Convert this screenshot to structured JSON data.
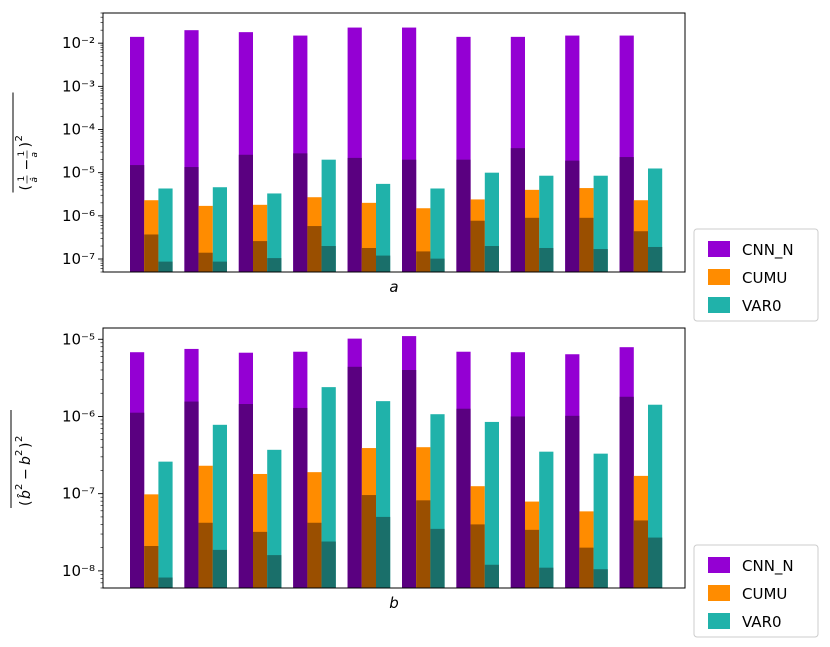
{
  "colors": {
    "cnn_n": "#9400d3",
    "cumu": "#ff8c00",
    "var0": "#20b2aa",
    "dark_cnn": "#5a0080",
    "dark_cumu": "#9a4f00",
    "dark_var0": "#1a6f6a"
  },
  "chart_data": [
    {
      "type": "bar",
      "scale": "log",
      "xlabel": "a",
      "ylabel": "$\\overline{(\\frac{1}{\\hat{a}}-\\frac{1}{a})^2}$",
      "ylim": [
        5e-08,
        0.05
      ],
      "yticks": [
        {
          "v": 1e-07,
          "label": "10⁻⁷"
        },
        {
          "v": 1e-06,
          "label": "10⁻⁶"
        },
        {
          "v": 1e-05,
          "label": "10⁻⁵"
        },
        {
          "v": 0.0001,
          "label": "10⁻⁴"
        },
        {
          "v": 0.001,
          "label": "10⁻³"
        },
        {
          "v": 0.01,
          "label": "10⁻²"
        }
      ],
      "legend": [
        "CNN_N",
        "CUMU",
        "VAR0"
      ],
      "legend_position": "outside-right-bottom",
      "series": [
        {
          "name": "CNN_N",
          "values": [
            0.014,
            0.02,
            0.018,
            0.015,
            0.023,
            0.023,
            0.014,
            0.014,
            0.015,
            0.015
          ]
        },
        {
          "name": "CUMU",
          "values": [
            2.3e-06,
            1.7e-06,
            1.8e-06,
            2.7e-06,
            2e-06,
            1.5e-06,
            2.4e-06,
            4e-06,
            4.4e-06,
            2.3e-06
          ]
        },
        {
          "name": "VAR0",
          "values": [
            4.3e-06,
            4.6e-06,
            3.3e-06,
            2e-05,
            5.5e-06,
            4.3e-06,
            1e-05,
            8.5e-06,
            8.5e-06,
            1.25e-05
          ]
        }
      ],
      "dark_overlays": [
        {
          "name": "CNN_N",
          "values": [
            1.5e-05,
            1.35e-05,
            2.6e-05,
            2.8e-05,
            2.2e-05,
            2e-05,
            2e-05,
            3.7e-05,
            1.9e-05,
            2.3e-05
          ]
        },
        {
          "name": "CUMU",
          "values": [
            3.7e-07,
            1.4e-07,
            2.6e-07,
            5.8e-07,
            1.8e-07,
            1.5e-07,
            7.7e-07,
            9e-07,
            9e-07,
            4.4e-07
          ]
        },
        {
          "name": "VAR0",
          "values": [
            8.7e-08,
            8.7e-08,
            1.05e-07,
            2e-07,
            1.2e-07,
            1.02e-07,
            2e-07,
            1.8e-07,
            1.7e-07,
            1.9e-07
          ]
        }
      ]
    },
    {
      "type": "bar",
      "scale": "log",
      "xlabel": "b",
      "ylabel": "$\\overline{(\\hat{b}^2-b^2)^2}$",
      "ylim": [
        6e-09,
        1.4e-05
      ],
      "yticks": [
        {
          "v": 1e-08,
          "label": "10⁻⁸"
        },
        {
          "v": 1e-07,
          "label": "10⁻⁷"
        },
        {
          "v": 1e-06,
          "label": "10⁻⁶"
        },
        {
          "v": 1e-05,
          "label": "10⁻⁵"
        }
      ],
      "legend": [
        "CNN_N",
        "CUMU",
        "VAR0"
      ],
      "legend_position": "outside-right-bottom",
      "series": [
        {
          "name": "CNN_N",
          "values": [
            6.8e-06,
            7.5e-06,
            6.7e-06,
            6.9e-06,
            1.02e-05,
            1.1e-05,
            6.9e-06,
            6.8e-06,
            6.4e-06,
            7.9e-06
          ]
        },
        {
          "name": "CUMU",
          "values": [
            9.8e-08,
            2.3e-07,
            1.8e-07,
            1.9e-07,
            3.9e-07,
            4e-07,
            1.25e-07,
            7.9e-08,
            5.9e-08,
            1.7e-07
          ]
        },
        {
          "name": "VAR0",
          "values": [
            2.6e-07,
            7.8e-07,
            3.7e-07,
            2.4e-06,
            1.58e-06,
            1.07e-06,
            8.5e-07,
            3.5e-07,
            3.3e-07,
            1.42e-06
          ]
        }
      ],
      "dark_overlays": [
        {
          "name": "CNN_N",
          "values": [
            1.12e-06,
            1.56e-06,
            1.45e-06,
            1.29e-06,
            4.4e-06,
            4e-06,
            1.26e-06,
            1e-06,
            1.02e-06,
            1.8e-06
          ]
        },
        {
          "name": "CUMU",
          "values": [
            2.1e-08,
            4.2e-08,
            3.2e-08,
            4.2e-08,
            9.6e-08,
            8.2e-08,
            4e-08,
            3.4e-08,
            2e-08,
            4.5e-08
          ]
        },
        {
          "name": "VAR0",
          "values": [
            8.2e-09,
            1.87e-08,
            1.6e-08,
            2.4e-08,
            5e-08,
            3.5e-08,
            1.2e-08,
            1.1e-08,
            1.05e-08,
            2.7e-08
          ]
        }
      ]
    }
  ]
}
